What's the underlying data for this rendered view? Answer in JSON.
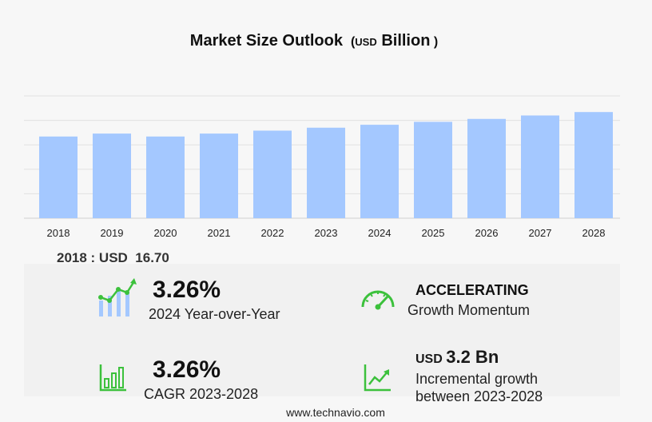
{
  "chart_data": {
    "type": "bar",
    "title": "Market Size Outlook",
    "unit_prefix": "USD",
    "unit_suffix": "Billion",
    "categories": [
      "2018",
      "2019",
      "2020",
      "2021",
      "2022",
      "2023",
      "2024",
      "2025",
      "2026",
      "2027",
      "2028"
    ],
    "values": [
      16.7,
      17.3,
      16.7,
      17.3,
      17.9,
      18.5,
      19.1,
      19.7,
      20.3,
      21.0,
      21.7
    ],
    "ylim": [
      0,
      25
    ],
    "grid": true,
    "bar_color": "#a4c8ff"
  },
  "base_year": {
    "year": "2018",
    "label": "2018 : USD",
    "value": "16.70"
  },
  "stats": {
    "yoy": {
      "value": "3.26%",
      "label": "2024 Year-over-Year"
    },
    "momentum": {
      "value": "ACCELERATING",
      "label": "Growth Momentum"
    },
    "cagr": {
      "value": "3.26%",
      "label": "CAGR 2023-2028"
    },
    "incremental": {
      "currency": "USD",
      "value": "3.2 Bn",
      "label_line1": "Incremental growth",
      "label_line2": "between 2023-2028"
    }
  },
  "icons": {
    "accent": "#3cc13c"
  },
  "footer": "www.technavio.com"
}
